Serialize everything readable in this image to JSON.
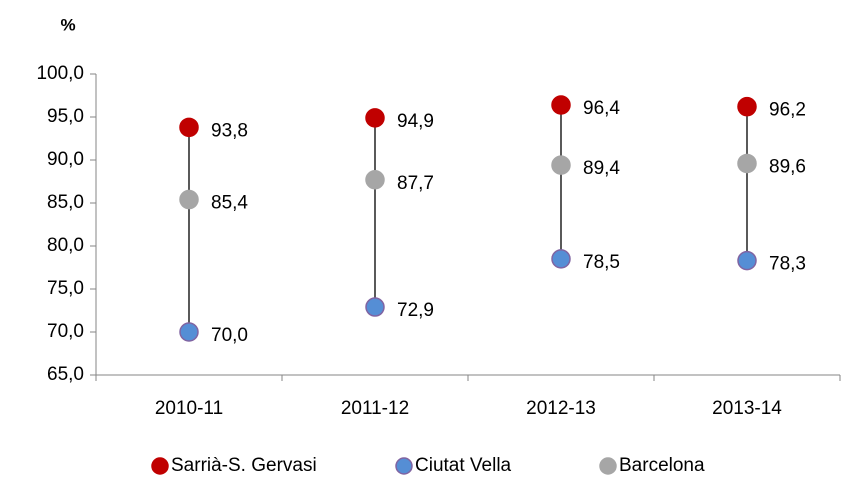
{
  "chart_data": {
    "type": "dot",
    "y_label": "%",
    "categories": [
      "2010-11",
      "2011-12",
      "2012-13",
      "2013-14"
    ],
    "series": [
      {
        "name": "Sarrià-S. Gervasi",
        "color": "#c00000",
        "values": [
          93.8,
          94.9,
          96.4,
          96.2
        ],
        "value_labels": [
          "93,8",
          "94,9",
          "96,4",
          "96,2"
        ]
      },
      {
        "name": "Ciutat Vella",
        "color": "#558ed5",
        "values": [
          70.0,
          72.9,
          78.5,
          78.3
        ],
        "value_labels": [
          "70,0",
          "72,9",
          "78,5",
          "78,3"
        ]
      },
      {
        "name": "Barcelona",
        "color": "#a6a6a6",
        "values": [
          85.4,
          87.7,
          89.4,
          89.6
        ],
        "value_labels": [
          "85,4",
          "87,7",
          "89,4",
          "89,6"
        ]
      }
    ],
    "ylim": [
      65,
      100
    ],
    "yticks": [
      {
        "value": 65,
        "label": "65,0"
      },
      {
        "value": 70,
        "label": "70,0"
      },
      {
        "value": 75,
        "label": "75,0"
      },
      {
        "value": 80,
        "label": "80,0"
      },
      {
        "value": 85,
        "label": "85,0"
      },
      {
        "value": 90,
        "label": "90,0"
      },
      {
        "value": 95,
        "label": "95,0"
      },
      {
        "value": 100,
        "label": "100,0"
      }
    ],
    "grid": false,
    "legend": "bottom"
  }
}
